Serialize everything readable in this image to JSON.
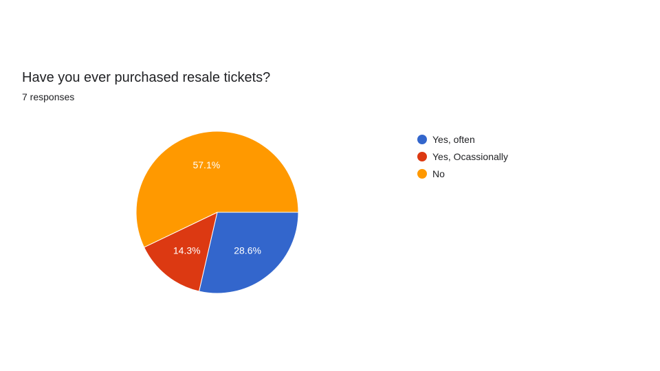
{
  "title": "Have you ever purchased resale tickets?",
  "subtitle": "7 responses",
  "chart_data": {
    "type": "pie",
    "start_angle_deg": 0,
    "direction": "clockwise",
    "slices": [
      {
        "label": "Yes, often",
        "value": 28.6,
        "display": "28.6%",
        "color": "#3366cc"
      },
      {
        "label": "Yes, Ocassionally",
        "value": 14.3,
        "display": "14.3%",
        "color": "#dc3912"
      },
      {
        "label": "No",
        "value": 57.1,
        "display": "57.1%",
        "color": "#ff9900"
      }
    ],
    "legend_position": "right"
  }
}
